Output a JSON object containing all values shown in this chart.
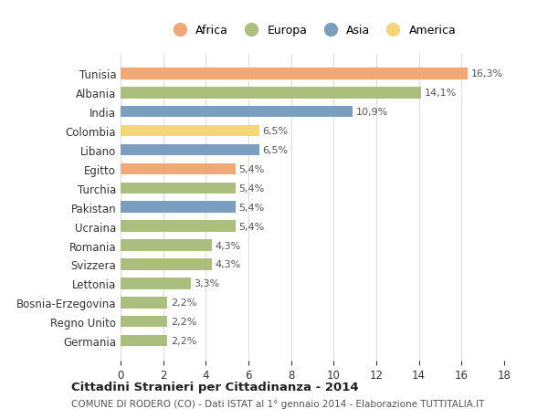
{
  "countries": [
    "Tunisia",
    "Albania",
    "India",
    "Colombia",
    "Libano",
    "Egitto",
    "Turchia",
    "Pakistan",
    "Ucraina",
    "Romania",
    "Svizzera",
    "Lettonia",
    "Bosnia-Erzegovina",
    "Regno Unito",
    "Germania"
  ],
  "values": [
    16.3,
    14.1,
    10.9,
    6.5,
    6.5,
    5.4,
    5.4,
    5.4,
    5.4,
    4.3,
    4.3,
    3.3,
    2.2,
    2.2,
    2.2
  ],
  "labels": [
    "16,3%",
    "14,1%",
    "10,9%",
    "6,5%",
    "6,5%",
    "5,4%",
    "5,4%",
    "5,4%",
    "5,4%",
    "4,3%",
    "4,3%",
    "3,3%",
    "2,2%",
    "2,2%",
    "2,2%"
  ],
  "continents": [
    "Africa",
    "Europa",
    "Asia",
    "America",
    "Asia",
    "Africa",
    "Europa",
    "Asia",
    "Europa",
    "Europa",
    "Europa",
    "Europa",
    "Europa",
    "Europa",
    "Europa"
  ],
  "colors": {
    "Africa": "#F0A875",
    "Europa": "#AABF7E",
    "Asia": "#7A9EC0",
    "America": "#F5D57A"
  },
  "legend_order": [
    "Africa",
    "Europa",
    "Asia",
    "America"
  ],
  "title": "Cittadini Stranieri per Cittadinanza - 2014",
  "subtitle": "COMUNE DI RODERO (CO) - Dati ISTAT al 1° gennaio 2014 - Elaborazione TUTTITALIA.IT",
  "xlim": [
    0,
    18
  ],
  "xticks": [
    0,
    2,
    4,
    6,
    8,
    10,
    12,
    14,
    16,
    18
  ],
  "background_color": "#ffffff",
  "grid_color": "#dddddd"
}
